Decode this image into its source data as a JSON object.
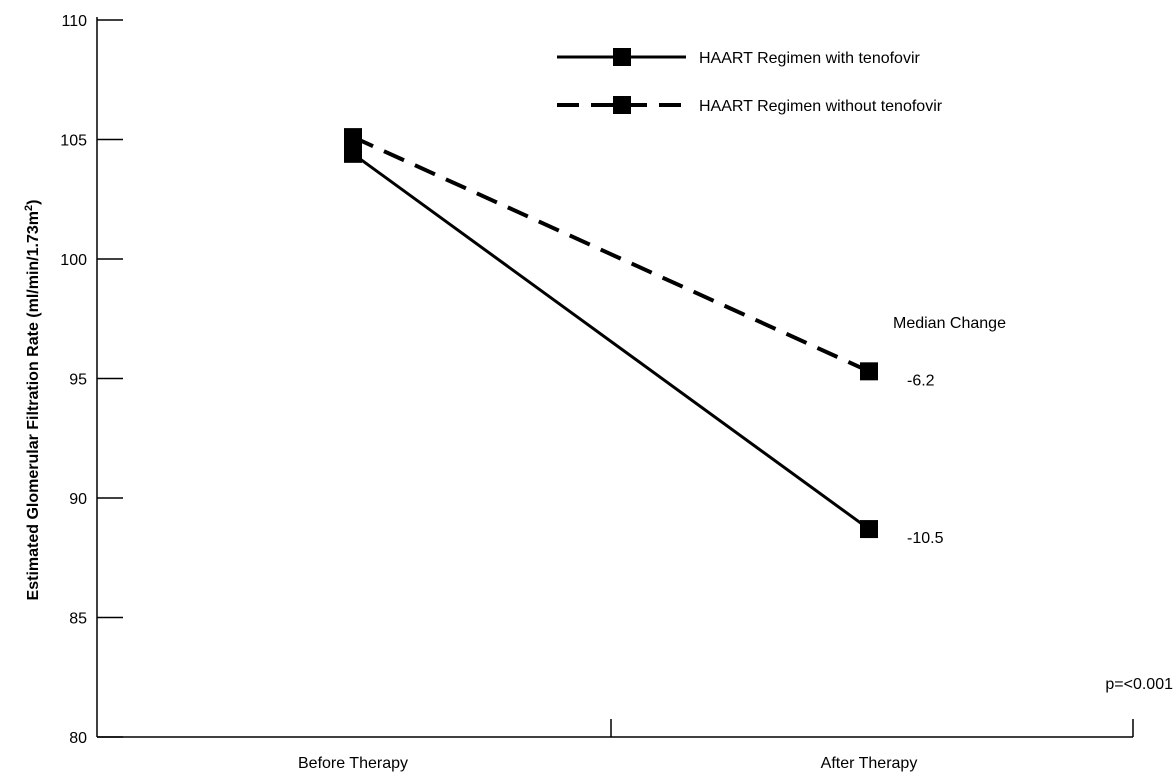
{
  "chart_data": {
    "type": "line",
    "categories": [
      "Before Therapy",
      "After Therapy"
    ],
    "series": [
      {
        "name": "HAART Regimen with tenofovir",
        "values": [
          104.4,
          88.7
        ],
        "dash": "solid",
        "annotation": "-10.5"
      },
      {
        "name": "HAART Regimen without tenofovir",
        "values": [
          105.1,
          95.3
        ],
        "dash": "dashed",
        "annotation": "-6.2"
      }
    ],
    "ylabel_main": "Estimated Glomerular Filtration  Rate (ml/min/1.73m",
    "ylabel_sup": "2",
    "ylabel_close": ")",
    "ylim": [
      80,
      110
    ],
    "yticks": [
      "80",
      "85",
      "90",
      "95",
      "100",
      "105",
      "110"
    ],
    "annotation_title": "Median Change",
    "pvalue": "p=<0.001",
    "legend_position": "top-right",
    "grid": false,
    "color": "#000000"
  }
}
